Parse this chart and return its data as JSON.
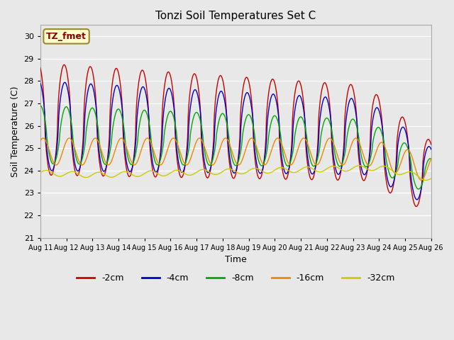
{
  "title": "Tonzi Soil Temperatures Set C",
  "xlabel": "Time",
  "ylabel": "Soil Temperature (C)",
  "ylim": [
    21.0,
    30.5
  ],
  "yticks": [
    21.0,
    22.0,
    23.0,
    24.0,
    25.0,
    26.0,
    27.0,
    28.0,
    29.0,
    30.0
  ],
  "xtick_labels": [
    "Aug 11",
    "Aug 12",
    "Aug 13",
    "Aug 14",
    "Aug 15",
    "Aug 16",
    "Aug 17",
    "Aug 18",
    "Aug 19",
    "Aug 20",
    "Aug 21",
    "Aug 22",
    "Aug 23",
    "Aug 24",
    "Aug 25",
    "Aug 26"
  ],
  "colors": {
    "-2cm": "#cc0000",
    "-4cm": "#0000cc",
    "-8cm": "#00aa00",
    "-16cm": "#ee8800",
    "-32cm": "#cccc00"
  },
  "legend_label": "TZ_fmet",
  "bg_color": "#e8e8e8",
  "grid_color": "#ffffff",
  "annotation_facecolor": "#ffffcc",
  "annotation_edgecolor": "#998833",
  "annotation_textcolor": "#880000"
}
